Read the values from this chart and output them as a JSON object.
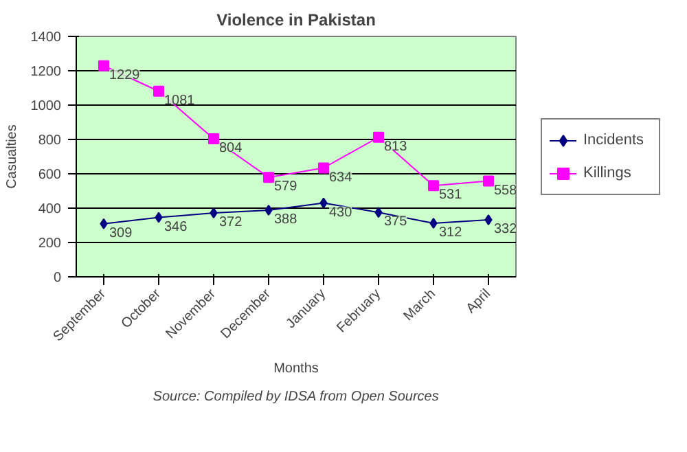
{
  "chart_data": {
    "type": "line",
    "title": "Violence in Pakistan",
    "xlabel": "Months",
    "ylabel": "Casualties",
    "annotations": [
      "Source: Compiled by IDSA from Open Sources"
    ],
    "categories": [
      "September",
      "October",
      "November",
      "December",
      "January",
      "February",
      "March",
      "April"
    ],
    "series": [
      {
        "name": "Incidents",
        "color": "#000080",
        "marker": "diamond",
        "values": [
          309,
          346,
          372,
          388,
          430,
          375,
          312,
          332
        ]
      },
      {
        "name": "Killings",
        "color": "#ff00ff",
        "marker": "square",
        "values": [
          1229,
          1081,
          804,
          579,
          634,
          813,
          531,
          558
        ]
      }
    ],
    "ylim": [
      0,
      1400
    ],
    "yticks": [
      0,
      200,
      400,
      600,
      800,
      1000,
      1200,
      1400
    ],
    "grid": "y",
    "legend": "right",
    "data_labels": true,
    "line_style": "solid"
  }
}
